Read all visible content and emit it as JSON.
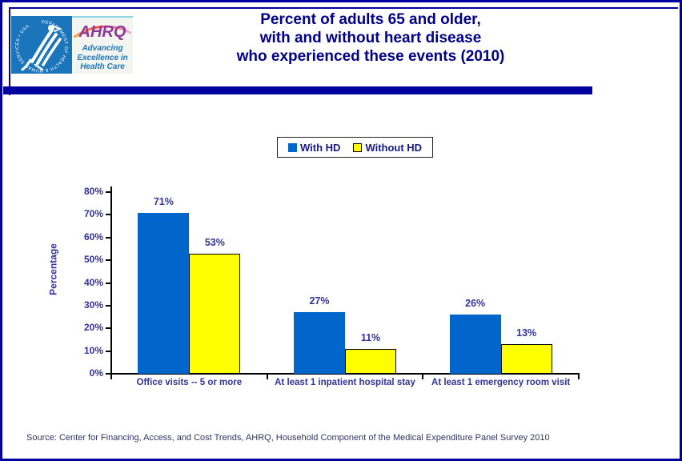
{
  "header": {
    "title_lines": [
      "Percent of adults 65 and older,",
      "with and without heart disease",
      "who experienced these events (2010)"
    ],
    "hhs_logo": {
      "circle_text": "DEPARTMENT OF HEALTH & HUMAN SERVICES • USA"
    },
    "ahrq_logo": {
      "wordmark": "AHRQ",
      "tagline_lines": [
        "Advancing",
        "Excellence in",
        "Health Care"
      ]
    }
  },
  "chart_data": {
    "type": "bar",
    "title": "Percent of adults 65 and older, with and without heart disease who experienced these events (2010)",
    "categories": [
      "Office visits -- 5 or more",
      "At least 1 inpatient hospital stay",
      "At least 1 emergency room visit"
    ],
    "series": [
      {
        "name": "With HD",
        "color": "#0066CC",
        "values": [
          71,
          27,
          26
        ],
        "labels": [
          "71%",
          "27%",
          "26%"
        ]
      },
      {
        "name": "Without HD",
        "color": "#FFFF00",
        "values": [
          53,
          11,
          13
        ],
        "labels": [
          "53%",
          "11%",
          "13%"
        ]
      }
    ],
    "xlabel": "",
    "ylabel": "Percentage",
    "ylim": [
      0,
      80
    ],
    "yticks": [
      "0%",
      "10%",
      "20%",
      "30%",
      "40%",
      "50%",
      "60%",
      "70%",
      "80%"
    ],
    "grid": false,
    "legend_position": "top"
  },
  "source": "Source: Center for Financing, Access, and Cost Trends, AHRQ, Household Component of the Medical Expenditure Panel Survey 2010",
  "colors": {
    "frame_navy": "#0000A0",
    "title_navy": "#00008B",
    "axis_text": "#333399",
    "bar_blue": "#0066CC",
    "bar_yellow": "#FFFF00",
    "hhs_blue": "#1B75BB",
    "ahrq_purple": "#8E3A96",
    "tagline_blue": "#1B75BC"
  }
}
